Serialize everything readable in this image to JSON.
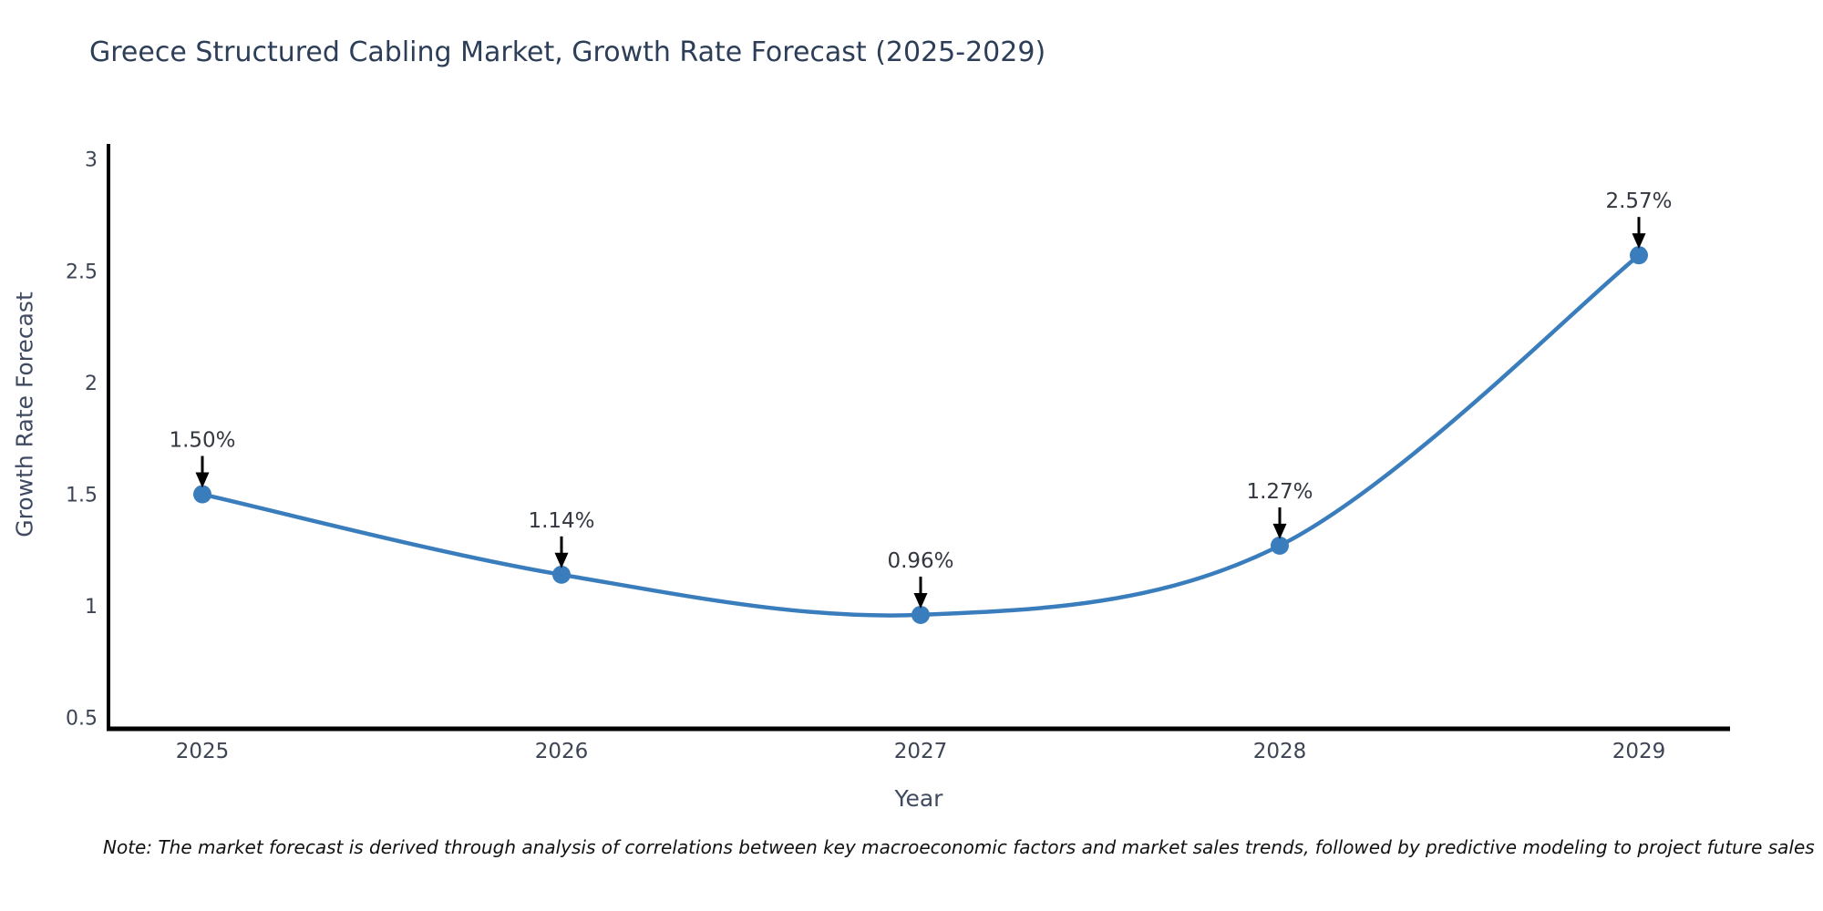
{
  "chart": {
    "title": "Greece Structured Cabling Market, Growth Rate Forecast (2025-2029)",
    "xlabel": "Year",
    "ylabel": "Growth Rate Forecast",
    "note": "Note: The market forecast is derived through analysis of correlations between key macroeconomic factors and market sales trends, followed by predictive modeling to project future sales"
  },
  "chart_data": {
    "type": "line",
    "title": "Greece Structured Cabling Market, Growth Rate Forecast (2025-2029)",
    "xlabel": "Year",
    "ylabel": "Growth Rate Forecast",
    "categories": [
      "2025",
      "2026",
      "2027",
      "2028",
      "2029"
    ],
    "values": [
      1.5,
      1.14,
      0.96,
      1.27,
      2.57
    ],
    "point_labels": [
      "1.50%",
      "1.14%",
      "0.96%",
      "1.27%",
      "2.57%"
    ],
    "yticks": [
      0.5,
      1,
      1.5,
      2,
      2.5,
      3
    ],
    "ylim": [
      0.45,
      3.06
    ],
    "grid": false,
    "legend": "none",
    "line_shape": "spline",
    "annotation_style": "value label with black down-arrow to marker",
    "colors": {
      "line": "#3a7dbd",
      "marker": "#3a7dbd",
      "axis": "#000000",
      "arrow": "#000000",
      "tick_text": "#3d4454",
      "annotation_text": "#33373f"
    }
  }
}
